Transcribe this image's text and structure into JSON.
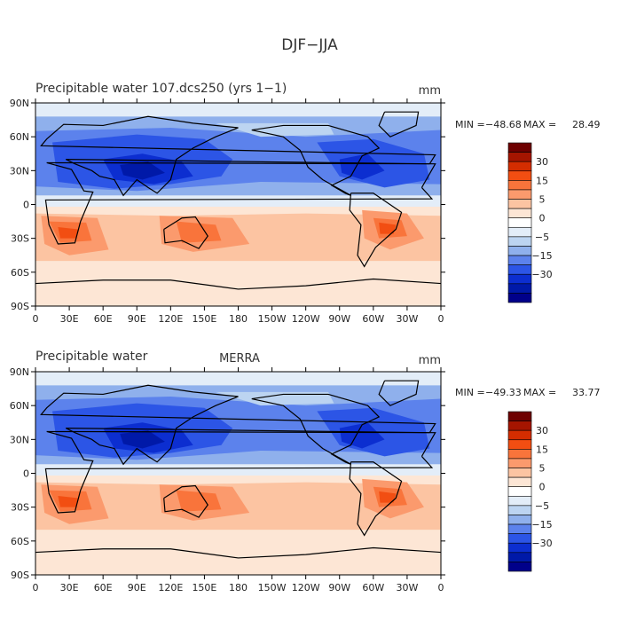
{
  "figure": {
    "title": "DJF−JJA"
  },
  "colors": {
    "levels": [
      "#6e0000",
      "#a51500",
      "#d42d00",
      "#f24e12",
      "#f9743b",
      "#fb9a6d",
      "#fcc4a2",
      "#fde6d5",
      "#ffffff",
      "#e3edf8",
      "#bcd4f1",
      "#8fb0ec",
      "#5c82ec",
      "#2c55e6",
      "#0c2ed0",
      "#0019a8",
      "#00008a"
    ]
  },
  "chart_data": [
    {
      "type": "heatmap",
      "title": "Precipitable water 107.dcs250 (yrs 1−1)",
      "center_label": "",
      "units": "mm",
      "stats": {
        "min_label": "MIN =",
        "min": "−48.68",
        "max_label": "MAX =",
        "max": "28.49"
      },
      "colorbar_labels": [
        "30",
        "15",
        "5",
        "0",
        "−5",
        "−15",
        "−30"
      ],
      "x_ticks": [
        "0",
        "30E",
        "60E",
        "90E",
        "120E",
        "150E",
        "180",
        "150W",
        "120W",
        "90W",
        "60W",
        "30W",
        "0"
      ],
      "y_ticks": [
        "90N",
        "60N",
        "30N",
        "0",
        "30S",
        "60S",
        "90S"
      ],
      "xlim": [
        0,
        360
      ],
      "ylim": [
        -90,
        90
      ]
    },
    {
      "type": "heatmap",
      "title": "Precipitable water",
      "center_label": "MERRA",
      "units": "mm",
      "stats": {
        "min_label": "MIN =",
        "min": "−49.33",
        "max_label": "MAX =",
        "max": "33.77"
      },
      "colorbar_labels": [
        "30",
        "15",
        "5",
        "0",
        "−5",
        "−15",
        "−30"
      ],
      "x_ticks": [
        "0",
        "30E",
        "60E",
        "90E",
        "120E",
        "150E",
        "180",
        "150W",
        "120W",
        "90W",
        "60W",
        "30W",
        "0"
      ],
      "y_ticks": [
        "90N",
        "60N",
        "30N",
        "0",
        "30S",
        "60S",
        "90S"
      ],
      "xlim": [
        0,
        360
      ],
      "ylim": [
        -90,
        90
      ]
    }
  ]
}
